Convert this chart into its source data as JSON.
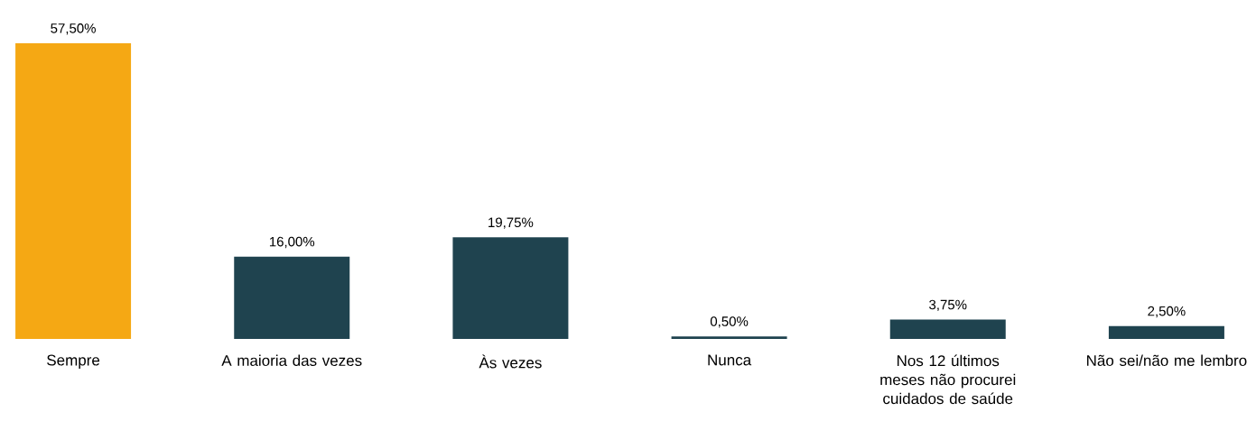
{
  "chart_data": {
    "type": "bar",
    "categories": [
      "Sempre",
      "A maioria das vezes",
      "Às vezes",
      "Nunca",
      "Nos 12 últimos meses não procurei cuidados de saúde",
      "Não sei/não me lembro"
    ],
    "values": [
      57.5,
      16.0,
      19.75,
      0.5,
      3.75,
      2.5
    ],
    "value_labels": [
      "57,50%",
      "16,00%",
      "19,75%",
      "0,50%",
      "3,75%",
      "2,50%"
    ],
    "colors": [
      "#f5a814",
      "#1f434f",
      "#1f434f",
      "#1f434f",
      "#1f434f",
      "#1f434f"
    ]
  }
}
